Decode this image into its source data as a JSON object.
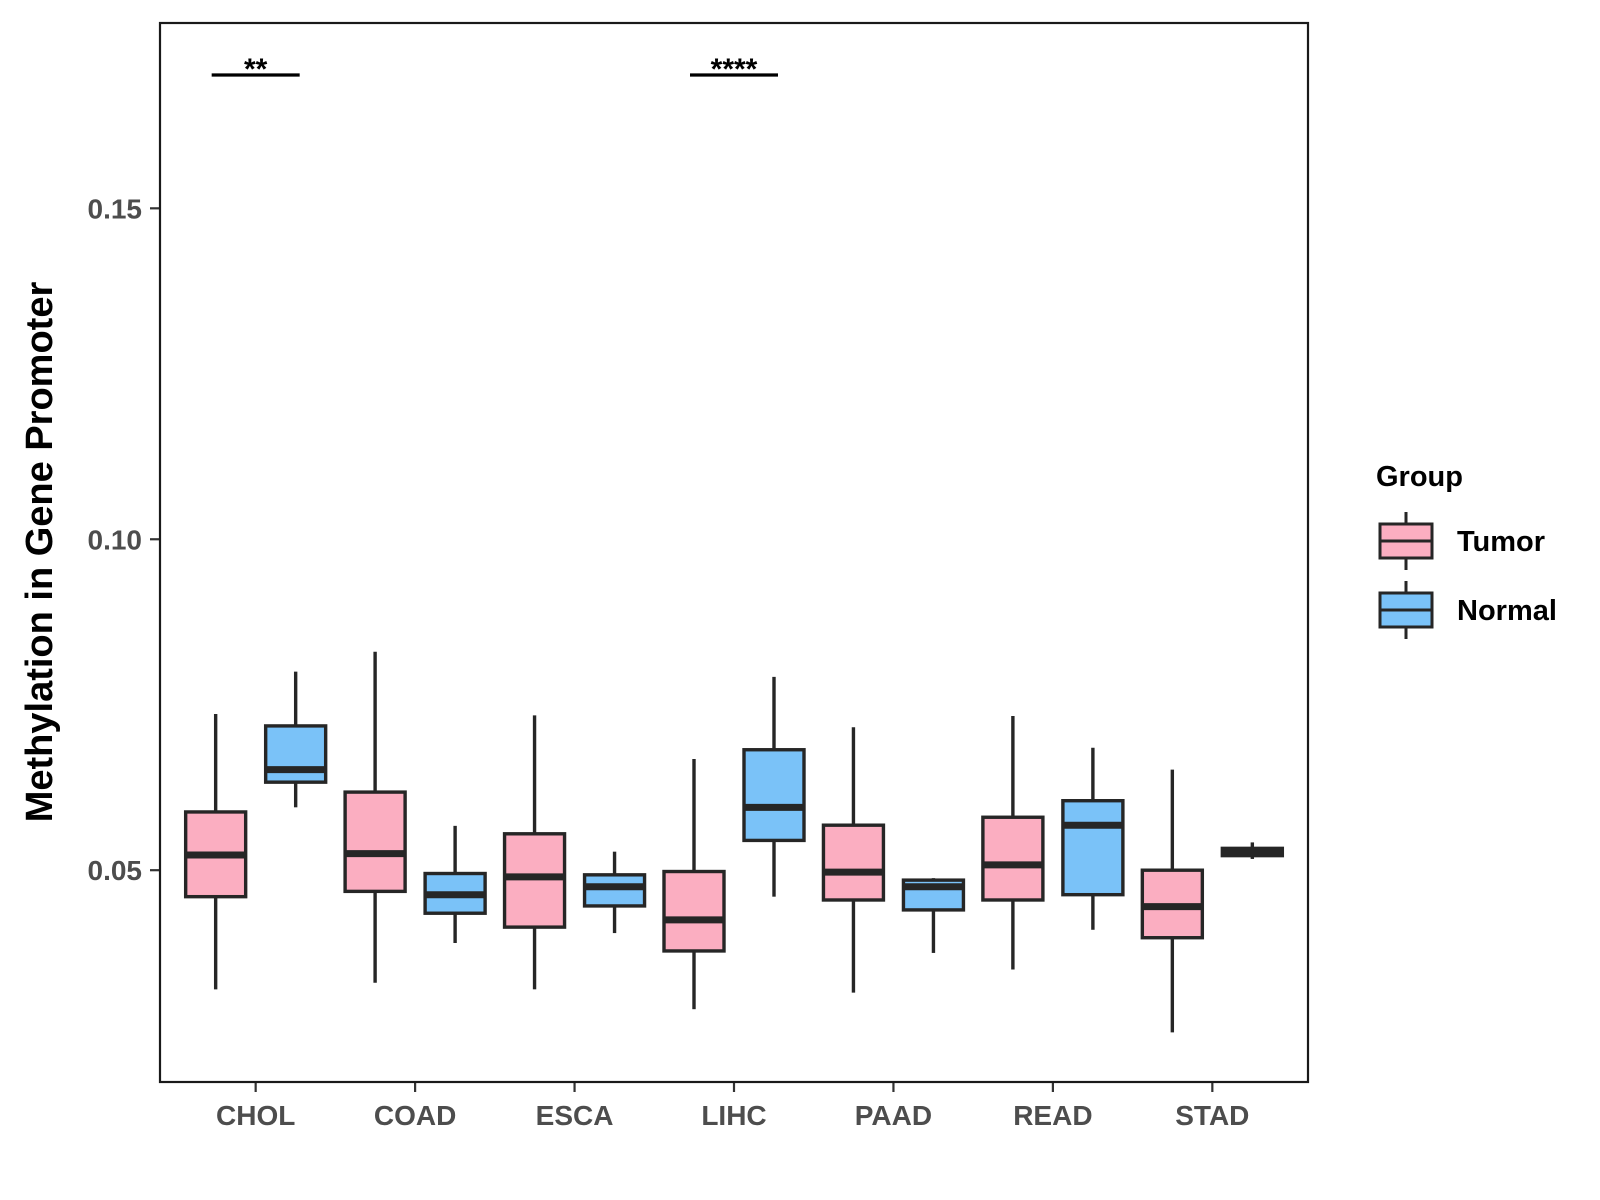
{
  "chart_data": {
    "type": "boxplot",
    "title": "",
    "xlabel": "",
    "ylabel": "Methylation in Gene Promoter",
    "ylim": [
      0.018,
      0.178
    ],
    "yticks": [
      0.05,
      0.1,
      0.15
    ],
    "ytick_labels": [
      "0.05",
      "0.10",
      "0.15"
    ],
    "categories": [
      "CHOL",
      "COAD",
      "ESCA",
      "LIHC",
      "PAAD",
      "READ",
      "STAD"
    ],
    "legend": {
      "title": "Group",
      "position": "right",
      "entries": [
        {
          "name": "Tumor",
          "color": "#FBAEC1"
        },
        {
          "name": "Normal",
          "color": "#7AC2F8"
        }
      ]
    },
    "series": [
      {
        "name": "Tumor",
        "color": "#FBAEC1",
        "boxes": [
          {
            "min": 0.032,
            "q1": 0.046,
            "median": 0.0523,
            "q3": 0.0588,
            "max": 0.0736
          },
          {
            "min": 0.033,
            "q1": 0.0468,
            "median": 0.0525,
            "q3": 0.0618,
            "max": 0.083
          },
          {
            "min": 0.032,
            "q1": 0.0414,
            "median": 0.049,
            "q3": 0.0555,
            "max": 0.0734
          },
          {
            "min": 0.029,
            "q1": 0.0378,
            "median": 0.0425,
            "q3": 0.0498,
            "max": 0.0668
          },
          {
            "min": 0.0315,
            "q1": 0.0455,
            "median": 0.0497,
            "q3": 0.0568,
            "max": 0.0716
          },
          {
            "min": 0.035,
            "q1": 0.0455,
            "median": 0.0508,
            "q3": 0.058,
            "max": 0.0733
          },
          {
            "min": 0.0255,
            "q1": 0.0398,
            "median": 0.0445,
            "q3": 0.05,
            "max": 0.0652
          }
        ]
      },
      {
        "name": "Normal",
        "color": "#7AC2F8",
        "boxes": [
          {
            "min": 0.0595,
            "q1": 0.0633,
            "median": 0.0652,
            "q3": 0.0718,
            "max": 0.08
          },
          {
            "min": 0.039,
            "q1": 0.0435,
            "median": 0.0463,
            "q3": 0.0495,
            "max": 0.0567
          },
          {
            "min": 0.0405,
            "q1": 0.0446,
            "median": 0.0475,
            "q3": 0.0493,
            "max": 0.0528
          },
          {
            "min": 0.046,
            "q1": 0.0545,
            "median": 0.0595,
            "q3": 0.0682,
            "max": 0.0792
          },
          {
            "min": 0.0375,
            "q1": 0.044,
            "median": 0.0475,
            "q3": 0.0485,
            "max": 0.0488
          },
          {
            "min": 0.041,
            "q1": 0.0463,
            "median": 0.0568,
            "q3": 0.0605,
            "max": 0.0685
          },
          {
            "min": 0.0517,
            "q1": 0.0522,
            "median": 0.0528,
            "q3": 0.0533,
            "max": 0.0542
          }
        ]
      }
    ],
    "annotations": [
      {
        "category": "CHOL",
        "label": "**"
      },
      {
        "category": "LIHC",
        "label": "****"
      }
    ]
  }
}
